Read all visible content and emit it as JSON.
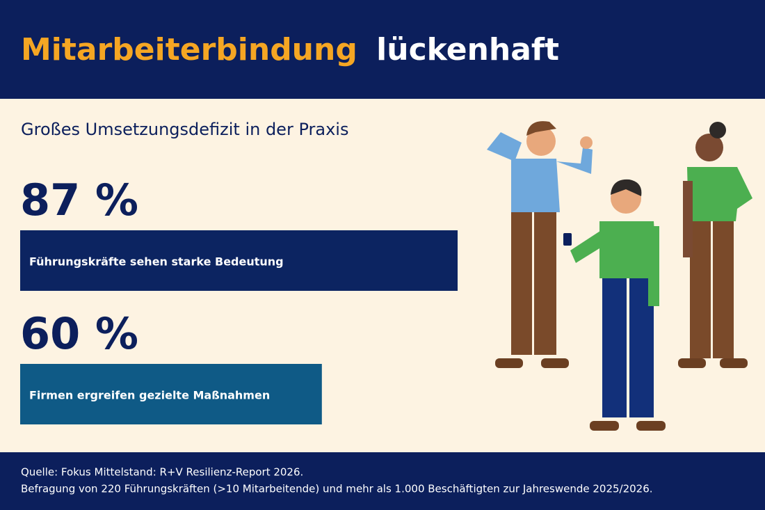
{
  "chart_data": {
    "type": "bar",
    "title": [
      "Mitarbeiterbindung",
      "lückenhaft"
    ],
    "subtitle": "Großes Umsetzungsdefizit in der Praxis",
    "categories": [
      "Führungskräfte sehen starke Bedeutung",
      "Firmen ergreifen gezielte Maßnahmen"
    ],
    "values": [
      87,
      60
    ],
    "value_labels": [
      "87 %",
      "60 %"
    ],
    "colors": [
      "#0c2461",
      "#0f5a86"
    ],
    "source": [
      "Quelle: Fokus Mittelstand: R+V Resilienz-Report 2026.",
      "Befragung von 220 Führungskräften (>10 Mitarbeitende) und mehr als 1.000 Beschäftigten zur Jahreswende 2025/2026."
    ]
  }
}
